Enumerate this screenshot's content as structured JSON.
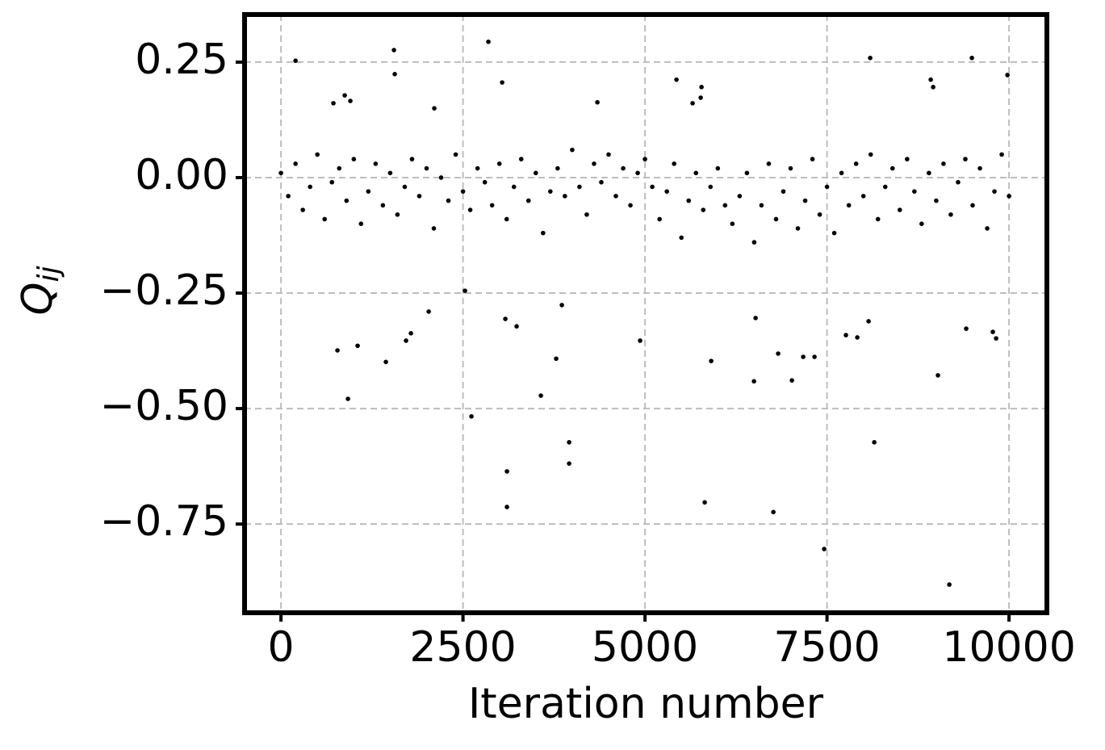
{
  "chart_data": {
    "type": "scatter",
    "xlabel": "Iteration number",
    "ylabel": {
      "symbol": "Q",
      "subscript": "ij"
    },
    "color": "#000000",
    "grid": true,
    "xlim": [
      -500,
      10520
    ],
    "ylim": [
      -0.942,
      0.353
    ],
    "xticks": [
      0,
      2500,
      5000,
      7500,
      10000
    ],
    "yticks": [
      {
        "value": 0.25,
        "label": "0.25"
      },
      {
        "value": 0,
        "label": "0.00"
      },
      {
        "value": -0.25,
        "label": "−0.25"
      },
      {
        "value": -0.5,
        "label": "−0.50"
      },
      {
        "value": -0.75,
        "label": "−0.75"
      }
    ],
    "x": [
      0,
      100,
      200,
      300,
      400,
      500,
      600,
      700,
      800,
      900,
      1000,
      1100,
      1200,
      1300,
      1400,
      1500,
      1600,
      1700,
      1800,
      1900,
      2000,
      2100,
      2200,
      2300,
      2400,
      2500,
      2600,
      2700,
      2800,
      2900,
      3000,
      3100,
      3200,
      3300,
      3400,
      3500,
      3600,
      3700,
      3800,
      3900,
      4000,
      4100,
      4200,
      4300,
      4400,
      4500,
      4600,
      4700,
      4800,
      4900,
      5000,
      5100,
      5200,
      5300,
      5400,
      5500,
      5600,
      5700,
      5800,
      5900,
      6000,
      6100,
      6200,
      6300,
      6400,
      6500,
      6600,
      6700,
      6800,
      6900,
      7000,
      7100,
      7200,
      7300,
      7400,
      7500,
      7600,
      7700,
      7800,
      7900,
      8000,
      8100,
      8200,
      8300,
      8400,
      8500,
      8600,
      8700,
      8800,
      8900,
      9000,
      9100,
      9200,
      9300,
      9400,
      9500,
      9600,
      9700,
      9800,
      9900,
      10000,
      200,
      1552,
      1563,
      2849,
      3038,
      8093,
      9490,
      9978,
      5432,
      5776,
      5765,
      5654,
      8925,
      8958,
      720,
      876,
      953,
      4346,
      2106,
      920,
      776,
      1053,
      1441,
      1718,
      1785,
      2029,
      2616,
      3104,
      3104,
      3570,
      3780,
      3958,
      3958,
      3858,
      4933,
      5909,
      5820,
      6497,
      6763,
      7018,
      7461,
      8149,
      7916,
      8071,
      9024,
      9180,
      9412,
      9778,
      9823,
      6829,
      7173,
      7328,
      2528,
      3082,
      3237,
      6519,
      7760
    ],
    "values": [
      0.01,
      -0.04,
      0.03,
      -0.07,
      -0.02,
      0.05,
      -0.09,
      -0.01,
      0.02,
      -0.05,
      0.04,
      -0.1,
      -0.03,
      0.03,
      -0.06,
      0.01,
      -0.08,
      -0.02,
      0.04,
      -0.04,
      0.02,
      -0.11,
      0.0,
      -0.05,
      0.05,
      -0.03,
      -0.07,
      0.02,
      -0.01,
      -0.06,
      0.03,
      -0.09,
      -0.02,
      0.04,
      -0.05,
      0.01,
      -0.12,
      -0.03,
      0.02,
      -0.04,
      0.06,
      -0.02,
      -0.08,
      0.03,
      -0.01,
      0.05,
      -0.04,
      0.02,
      -0.06,
      0.01,
      0.04,
      -0.02,
      -0.09,
      -0.03,
      0.03,
      -0.13,
      -0.05,
      0.01,
      -0.07,
      -0.02,
      0.02,
      -0.06,
      -0.1,
      -0.04,
      0.01,
      -0.14,
      -0.06,
      0.03,
      -0.09,
      -0.03,
      0.02,
      -0.11,
      -0.05,
      0.04,
      -0.08,
      -0.02,
      -0.12,
      0.01,
      -0.06,
      0.03,
      -0.04,
      0.05,
      -0.09,
      -0.02,
      0.02,
      -0.07,
      0.04,
      -0.03,
      -0.1,
      0.01,
      -0.05,
      0.03,
      -0.08,
      -0.01,
      0.04,
      -0.06,
      0.02,
      -0.11,
      -0.03,
      0.05,
      -0.04,
      0.253,
      0.276,
      0.224,
      0.294,
      0.206,
      0.259,
      0.259,
      0.222,
      0.212,
      0.196,
      0.173,
      0.161,
      0.212,
      0.196,
      0.161,
      0.178,
      0.166,
      0.163,
      0.15,
      -0.479,
      -0.374,
      -0.364,
      -0.399,
      -0.353,
      -0.337,
      -0.29,
      -0.517,
      -0.636,
      -0.713,
      -0.472,
      -0.392,
      -0.573,
      -0.619,
      -0.276,
      -0.353,
      -0.397,
      -0.703,
      -0.441,
      -0.724,
      -0.439,
      -0.804,
      -0.573,
      -0.346,
      -0.311,
      -0.428,
      -0.881,
      -0.327,
      -0.334,
      -0.348,
      -0.381,
      -0.388,
      -0.388,
      -0.245,
      -0.306,
      -0.322,
      -0.304,
      -0.341
    ]
  }
}
